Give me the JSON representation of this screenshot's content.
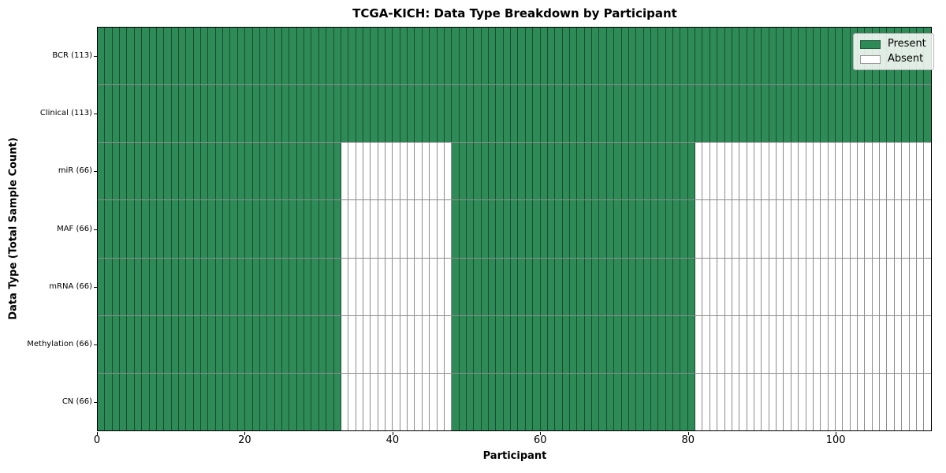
{
  "chart_data": {
    "type": "heatmap",
    "title": "TCGA-KICH: Data Type Breakdown by Participant",
    "xlabel": "Participant",
    "ylabel": "Data Type (Total Sample Count)",
    "n_participants": 113,
    "xlim": [
      0,
      113
    ],
    "x_ticks": [
      0,
      20,
      40,
      60,
      80,
      100
    ],
    "colors": {
      "present": "#2e8b57",
      "absent": "#ffffff",
      "cell_edge": "rgba(0,0,0,0.45)"
    },
    "legend": {
      "position": "upper right",
      "entries": [
        {
          "label": "Present",
          "color": "#2e8b57"
        },
        {
          "label": "Absent",
          "color": "#ffffff"
        }
      ]
    },
    "rows": [
      {
        "label": "BCR (113)",
        "name": "BCR",
        "total_samples": 113,
        "present_segments": [
          [
            0,
            113
          ]
        ]
      },
      {
        "label": "Clinical (113)",
        "name": "Clinical",
        "total_samples": 113,
        "present_segments": [
          [
            0,
            113
          ]
        ]
      },
      {
        "label": "miR (66)",
        "name": "miR",
        "total_samples": 66,
        "present_segments": [
          [
            0,
            33
          ],
          [
            48,
            81
          ]
        ]
      },
      {
        "label": "MAF (66)",
        "name": "MAF",
        "total_samples": 66,
        "present_segments": [
          [
            0,
            33
          ],
          [
            48,
            81
          ]
        ]
      },
      {
        "label": "mRNA (66)",
        "name": "mRNA",
        "total_samples": 66,
        "present_segments": [
          [
            0,
            33
          ],
          [
            48,
            81
          ]
        ]
      },
      {
        "label": "Methylation (66)",
        "name": "Methylation",
        "total_samples": 66,
        "present_segments": [
          [
            0,
            33
          ],
          [
            48,
            81
          ]
        ]
      },
      {
        "label": "CN (66)",
        "name": "CN",
        "total_samples": 66,
        "present_segments": [
          [
            0,
            33
          ],
          [
            48,
            81
          ]
        ]
      }
    ]
  }
}
